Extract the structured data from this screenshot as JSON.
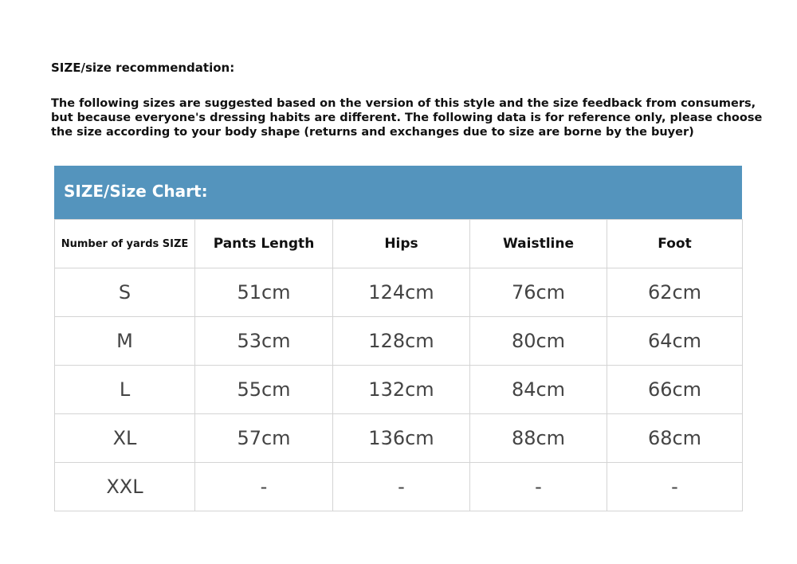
{
  "title": "SIZE/size recommendation:",
  "description": "The following sizes are suggested based on the version of this style and the size feedback from consumers, but because everyone's dressing habits are different. The following data is for reference only, please choose the size according to your body shape (returns and exchanges due to size are borne by the buyer)",
  "colors": {
    "header_band": "#5494bd"
  },
  "table": {
    "caption": "SIZE/Size Chart:",
    "headers": [
      "Number of yards SIZE",
      "Pants Length",
      "Hips",
      "Waistline",
      "Foot"
    ],
    "rows": [
      [
        "S",
        "51cm",
        "124cm",
        "76cm",
        "62cm"
      ],
      [
        "M",
        "53cm",
        "128cm",
        "80cm",
        "64cm"
      ],
      [
        "L",
        "55cm",
        "132cm",
        "84cm",
        "66cm"
      ],
      [
        "XL",
        "57cm",
        "136cm",
        "88cm",
        "68cm"
      ],
      [
        "XXL",
        "-",
        "-",
        "-",
        "-"
      ]
    ]
  }
}
